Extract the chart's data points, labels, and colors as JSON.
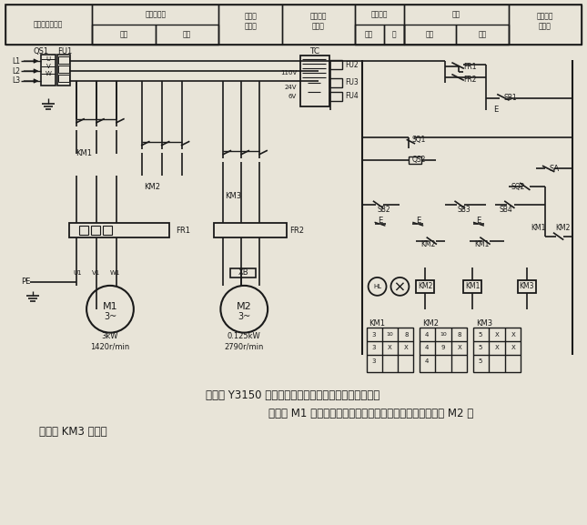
{
  "bg_color": "#e8e4d8",
  "line_color": "#1a1a1a",
  "figsize": [
    6.45,
    5.77
  ],
  "dpi": 100,
  "text_color": "#111111",
  "title_line1": "所示为 Y3150 型滚齿机电气原理图。从图中可以看出，",
  "title_line2": "主电机 M1 是带过载保护的可逆起动控制电路，冷却泵电机 M2 由",
  "title_line3": "接触器 KM3 控制。",
  "h_col1": "电源开关及保护",
  "h_col2a": "主轴电动机",
  "h_col2b1": "正转",
  "h_col2b2": "反转",
  "h_col3": "冷却泵\n电动机",
  "h_col4": "控制电源\n变压器",
  "h_col5a": "电源照明",
  "h_col5b1": "指示",
  "h_col5b2": "灯",
  "h_col6a": "主轴",
  "h_col6b1": "逆钣",
  "h_col6b2": "顺钣",
  "h_col7": "冷却泵电\n机控制"
}
